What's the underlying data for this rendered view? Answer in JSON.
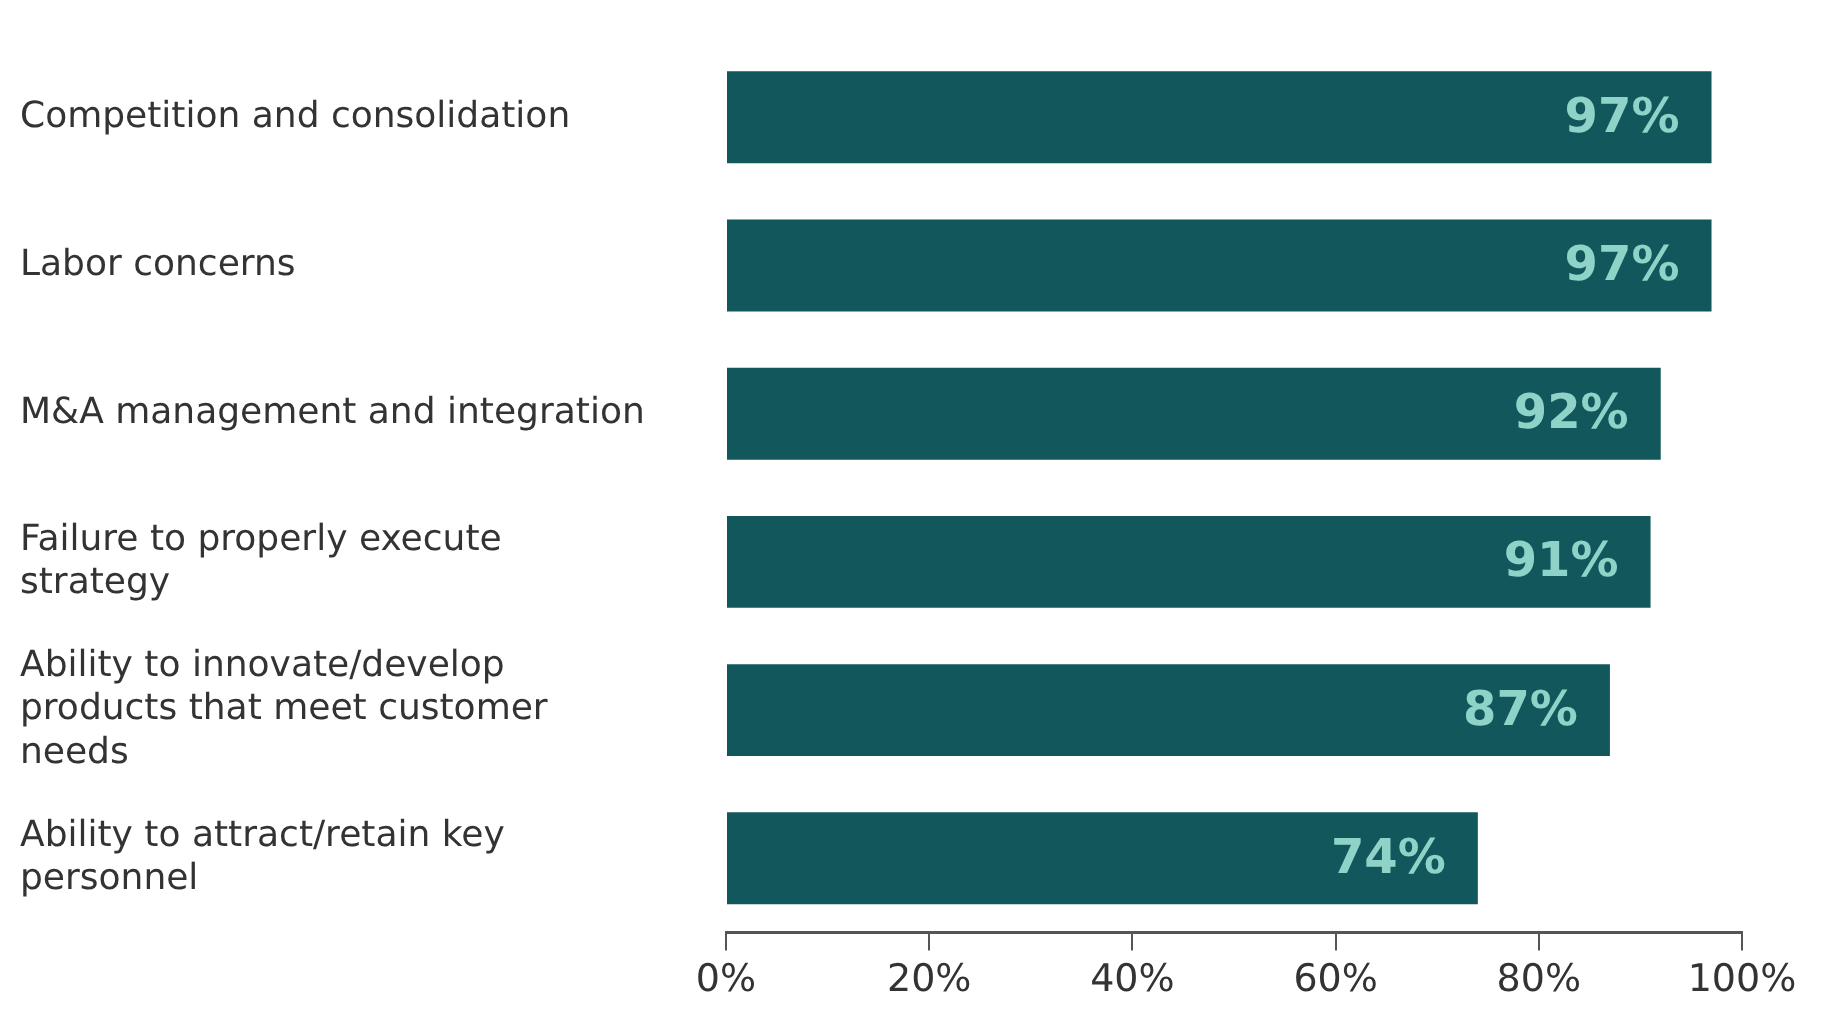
{
  "chart_data": {
    "type": "bar",
    "orientation": "horizontal",
    "categories": [
      "Competition and consolidation",
      "Labor concerns",
      "M&A management and integration",
      "Failure to properly execute strategy",
      "Ability to innovate/develop products that meet customer needs",
      "Ability to attract/retain key personnel"
    ],
    "values": [
      97,
      97,
      92,
      91,
      87,
      74
    ],
    "value_labels": [
      "97%",
      "97%",
      "92%",
      "91%",
      "87%",
      "74%"
    ],
    "color": "#12575c",
    "xlim": [
      0,
      100
    ],
    "xticks": [
      {
        "value": 0,
        "label": "0%"
      },
      {
        "value": 20,
        "label": "20%"
      },
      {
        "value": 40,
        "label": "40%"
      },
      {
        "value": 60,
        "label": "60%"
      },
      {
        "value": 80,
        "label": "80%"
      },
      {
        "value": 100,
        "label": "100%"
      }
    ],
    "grid": false,
    "legend": false
  }
}
